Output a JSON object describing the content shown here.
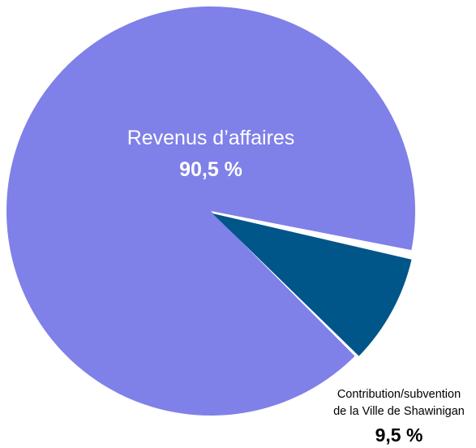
{
  "chart_data": {
    "type": "pie",
    "title": "",
    "slices": [
      {
        "label_lines": [
          "Revenus d’affaires"
        ],
        "value": 90.5,
        "value_label": "90,5 %",
        "color": "#7f80e8"
      },
      {
        "label_lines": [
          "Contribution/subvention",
          "de la Ville de Shawinigan"
        ],
        "value": 9.5,
        "value_label": "9,5 %",
        "color": "#005589"
      }
    ]
  }
}
